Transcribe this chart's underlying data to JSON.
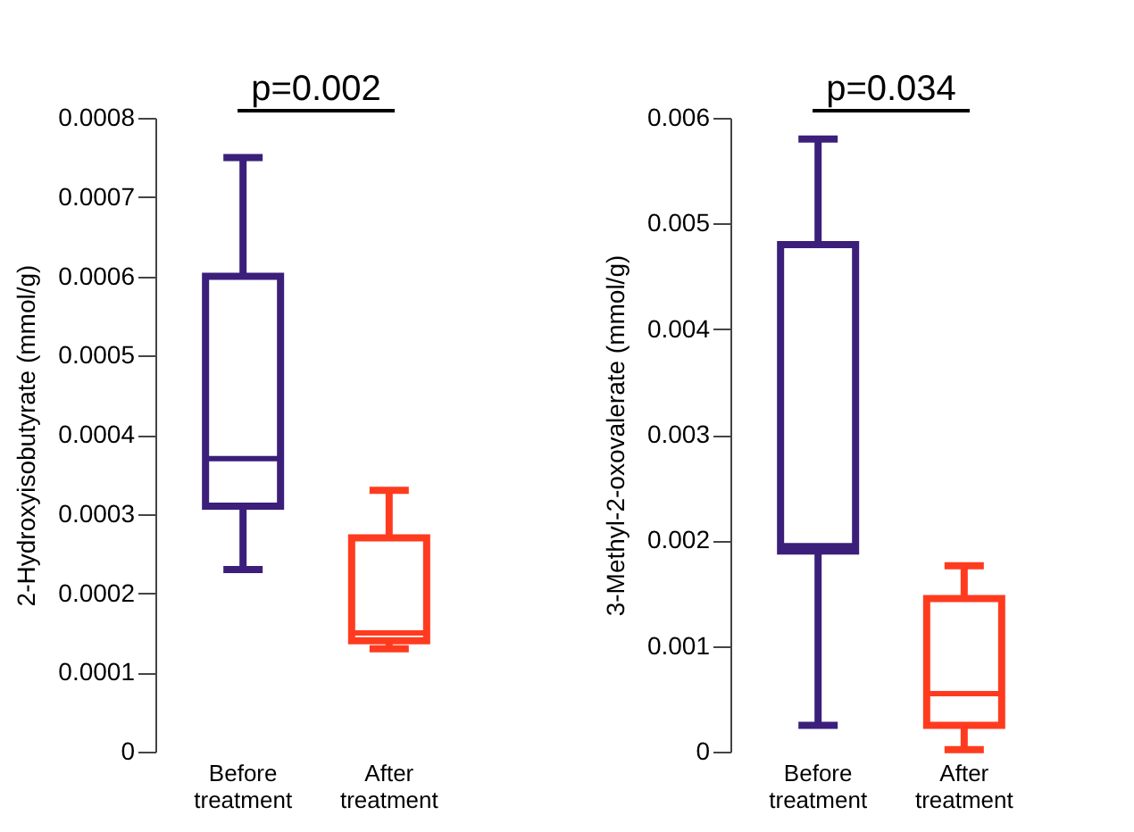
{
  "chart_data": [
    {
      "type": "box",
      "ylabel": "2-Hydroxyisobutyrate (mmol/g)",
      "categories": [
        "Before treatment",
        "After treatment"
      ],
      "colors": [
        "#3b1f7a",
        "#ff3b1f"
      ],
      "boxes": [
        {
          "low": 0.00023,
          "q1": 0.00031,
          "median": 0.00037,
          "q3": 0.0006,
          "high": 0.00075
        },
        {
          "low": 0.00013,
          "q1": 0.00014,
          "median": 0.00015,
          "q3": 0.00027,
          "high": 0.00033
        }
      ],
      "ylim": [
        0,
        0.0008
      ],
      "yticks": [
        0,
        0.0001,
        0.0002,
        0.0003,
        0.0004,
        0.0005,
        0.0006,
        0.0007,
        0.0008
      ],
      "grid": false,
      "annotations": [
        "p=0.002"
      ]
    },
    {
      "type": "box",
      "ylabel": "3-Methyl-2-oxovalerate (mmol/g)",
      "categories": [
        "Before treatment",
        "After treatment"
      ],
      "colors": [
        "#3b1f7a",
        "#ff3b1f"
      ],
      "boxes": [
        {
          "low": 0.00025,
          "q1": 0.0019,
          "median": 0.00195,
          "q3": 0.0048,
          "high": 0.0058
        },
        {
          "low": 2e-05,
          "q1": 0.00025,
          "median": 0.00055,
          "q3": 0.00145,
          "high": 0.00176
        }
      ],
      "ylim": [
        0,
        0.006
      ],
      "yticks": [
        0,
        0.001,
        0.002,
        0.003,
        0.004,
        0.005,
        0.006
      ],
      "grid": false,
      "annotations": [
        "p=0.034"
      ]
    }
  ]
}
